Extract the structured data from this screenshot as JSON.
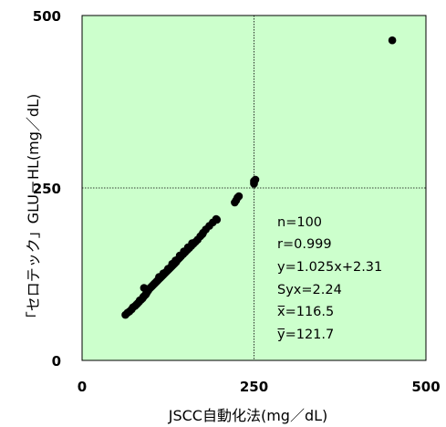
{
  "chart_data": {
    "type": "scatter",
    "xlabel": "JSCC自動化法(mg／dL)",
    "ylabel": "「セロテック」GLU－HL(mg／dL)",
    "xlim": [
      0,
      500
    ],
    "ylim": [
      0,
      500
    ],
    "x_ticks": [
      "0",
      "250",
      "500"
    ],
    "y_ticks": [
      "0",
      "250",
      "500"
    ],
    "reference_lines": {
      "x": 250,
      "y": 250
    },
    "grid": false,
    "plot_background": "#ccffcc",
    "point_color": "#000000",
    "stats": [
      "n=100",
      "r=0.999",
      "y=1.025x+2.31",
      "Syx=2.24",
      "x̅=116.5",
      "y̅=121.7"
    ],
    "points": [
      [
        63,
        66
      ],
      [
        66,
        69
      ],
      [
        69,
        71
      ],
      [
        72,
        74
      ],
      [
        74,
        77
      ],
      [
        77,
        79
      ],
      [
        79,
        81
      ],
      [
        81,
        83
      ],
      [
        83,
        85
      ],
      [
        84,
        87
      ],
      [
        86,
        88
      ],
      [
        88,
        90
      ],
      [
        89,
        92
      ],
      [
        90,
        93
      ],
      [
        92,
        95
      ],
      [
        93,
        96
      ],
      [
        94,
        98
      ],
      [
        95,
        100
      ],
      [
        96,
        101
      ],
      [
        97,
        103
      ],
      [
        98,
        104
      ],
      [
        99,
        105
      ],
      [
        100,
        106
      ],
      [
        101,
        107
      ],
      [
        102,
        108
      ],
      [
        103,
        109
      ],
      [
        104,
        110
      ],
      [
        105,
        111
      ],
      [
        106,
        112
      ],
      [
        107,
        113
      ],
      [
        108,
        114
      ],
      [
        109,
        115
      ],
      [
        110,
        116
      ],
      [
        111,
        117
      ],
      [
        112,
        118
      ],
      [
        113,
        119
      ],
      [
        114,
        120
      ],
      [
        115,
        121
      ],
      [
        116,
        122
      ],
      [
        117,
        123
      ],
      [
        118,
        124
      ],
      [
        119,
        125
      ],
      [
        120,
        126
      ],
      [
        121,
        127
      ],
      [
        122,
        128
      ],
      [
        123,
        129
      ],
      [
        124,
        130
      ],
      [
        125,
        131
      ],
      [
        126,
        132
      ],
      [
        127,
        133
      ],
      [
        128,
        134
      ],
      [
        129,
        135
      ],
      [
        130,
        136
      ],
      [
        131,
        137
      ],
      [
        132,
        138
      ],
      [
        133,
        139
      ],
      [
        134,
        140
      ],
      [
        135,
        141
      ],
      [
        136,
        142
      ],
      [
        137,
        143
      ],
      [
        138,
        145
      ],
      [
        140,
        147
      ],
      [
        142,
        149
      ],
      [
        144,
        151
      ],
      [
        147,
        154
      ],
      [
        150,
        157
      ],
      [
        153,
        160
      ],
      [
        156,
        163
      ],
      [
        159,
        166
      ],
      [
        162,
        169
      ],
      [
        165,
        172
      ],
      [
        168,
        175
      ],
      [
        172,
        180
      ],
      [
        176,
        185
      ],
      [
        180,
        190
      ],
      [
        185,
        195
      ],
      [
        190,
        200
      ],
      [
        195,
        205
      ],
      [
        222,
        229
      ],
      [
        224,
        232
      ],
      [
        226,
        236
      ],
      [
        228,
        238
      ],
      [
        250,
        256
      ],
      [
        250,
        258
      ],
      [
        250,
        260
      ],
      [
        252,
        262
      ],
      [
        451,
        464
      ],
      [
        90,
        105
      ],
      [
        95,
        103
      ],
      [
        112,
        121
      ],
      [
        118,
        126
      ],
      [
        125,
        133
      ],
      [
        131,
        140
      ],
      [
        136,
        145
      ],
      [
        142,
        152
      ],
      [
        148,
        158
      ],
      [
        154,
        164
      ],
      [
        160,
        170
      ],
      [
        175,
        183
      ],
      [
        196,
        204
      ]
    ]
  }
}
